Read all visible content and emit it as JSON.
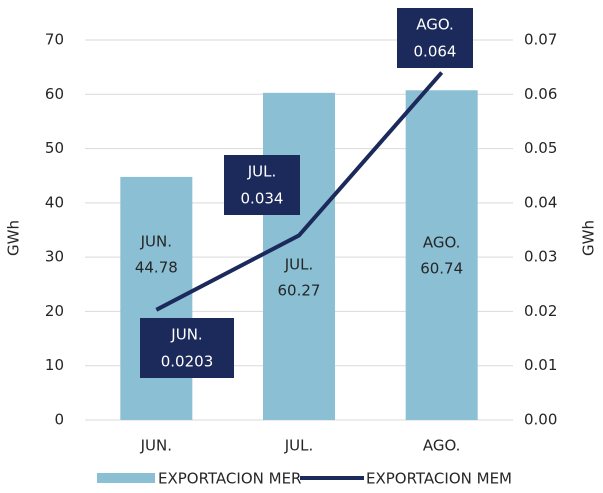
{
  "chart_data": {
    "type": "bar-line",
    "categories": [
      "JUN.",
      "JUL.",
      "AGO."
    ],
    "series": [
      {
        "name": "EXPORTACION MER",
        "type": "bar",
        "color": "#8bbfd4",
        "values": [
          44.78,
          60.27,
          60.74
        ]
      },
      {
        "name": "EXPORTACION MEM",
        "type": "line",
        "axis": "y2",
        "color": "#1b2a5a",
        "values": [
          0.0203,
          0.034,
          0.064
        ]
      }
    ],
    "ylabel": "GWh",
    "y2label": "GWh",
    "ylim": [
      0,
      70
    ],
    "yticks": [
      0,
      10,
      20,
      30,
      40,
      50,
      60,
      70
    ],
    "y2lim": [
      0,
      0.07
    ],
    "y2ticks": [
      {
        "value": 0,
        "label": "0.00"
      },
      0.01,
      0.02,
      0.03,
      0.04,
      0.05,
      0.06,
      0.07
    ],
    "grid": true,
    "legend": "bottom"
  }
}
